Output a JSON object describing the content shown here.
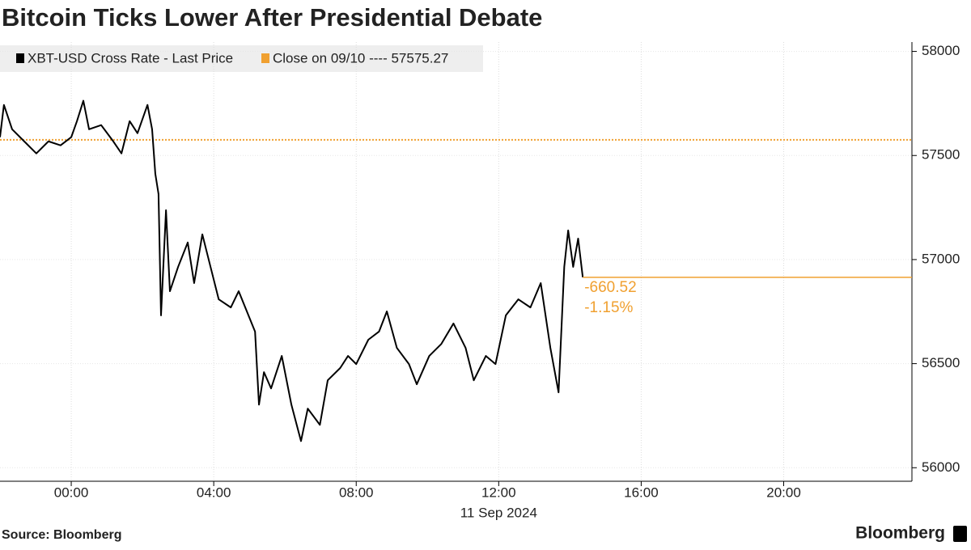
{
  "chart_data": {
    "type": "line",
    "title": "Bitcoin Ticks Lower After Presidential Debate",
    "xlabel": "11 Sep 2024",
    "source": "Source: Bloomberg",
    "logo": "Bloomberg",
    "x": [
      -2,
      -1.89,
      -1.66,
      -1.32,
      -0.98,
      -0.64,
      -0.3,
      0,
      0.16,
      0.34,
      0.5,
      0.84,
      1.18,
      1.41,
      1.64,
      1.86,
      2.14,
      2.27,
      2.36,
      2.45,
      2.52,
      2.66,
      2.77,
      3,
      3.27,
      3.45,
      3.68,
      3.91,
      4.14,
      4.48,
      4.7,
      4.93,
      5.16,
      5.27,
      5.41,
      5.61,
      5.91,
      6.18,
      6.45,
      6.64,
      6.98,
      7.2,
      7.55,
      7.77,
      8,
      8.34,
      8.64,
      8.86,
      9.14,
      9.48,
      9.7,
      10.05,
      10.39,
      10.73,
      11.07,
      11.3,
      11.64,
      11.91,
      12.2,
      12.55,
      12.89,
      13.18,
      13.45,
      13.68,
      13.84,
      13.95,
      14.09,
      14.23,
      14.36
    ],
    "series": [
      {
        "name": "XBT-USD Cross Rate - Last Price",
        "color": "#000000",
        "values": [
          57588,
          57743,
          57626,
          57568,
          57510,
          57568,
          57549,
          57588,
          57665,
          57763,
          57626,
          57646,
          57568,
          57510,
          57665,
          57607,
          57743,
          57626,
          57412,
          57315,
          56732,
          57237,
          56848,
          56965,
          57082,
          56887,
          57121,
          56965,
          56809,
          56770,
          56848,
          56751,
          56654,
          56303,
          56459,
          56381,
          56537,
          56303,
          56128,
          56284,
          56206,
          56420,
          56479,
          56537,
          56498,
          56615,
          56654,
          56751,
          56576,
          56498,
          56401,
          56537,
          56595,
          56693,
          56576,
          56420,
          56537,
          56498,
          56732,
          56809,
          56770,
          56887,
          56576,
          56362,
          56965,
          57140,
          56965,
          57101,
          56914.75
        ]
      }
    ],
    "reference_line": {
      "name": "Close on 09/10 ---- 57575.27",
      "value": 57575.27,
      "color": "#f0a030"
    },
    "change_labels": [
      "-660.52",
      "-1.15%"
    ],
    "change_color": "#f0a030",
    "xlim": [
      -2,
      23.6
    ],
    "xticks": [
      {
        "value": 0,
        "label": "00:00"
      },
      {
        "value": 4,
        "label": "04:00"
      },
      {
        "value": 8,
        "label": "08:00"
      },
      {
        "value": 12,
        "label": "12:00"
      },
      {
        "value": 16,
        "label": "16:00"
      },
      {
        "value": 20,
        "label": "20:00"
      }
    ],
    "ylim": [
      55935,
      58045
    ],
    "yticks": [
      56000,
      56500,
      57000,
      57500,
      58000
    ],
    "grid": true
  }
}
